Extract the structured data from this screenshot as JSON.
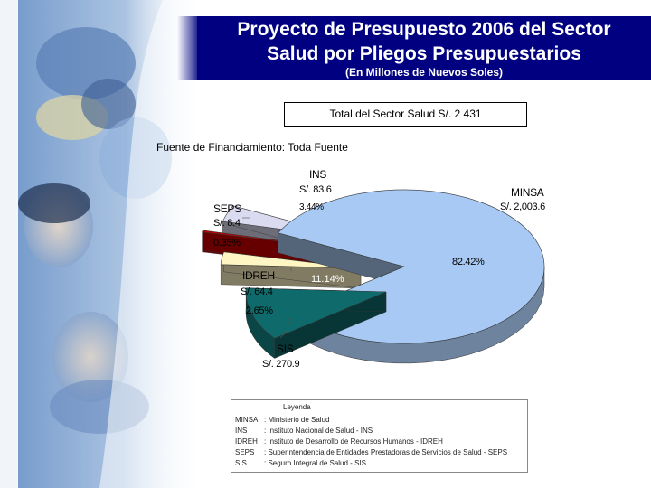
{
  "title": {
    "line1": "Proyecto de Presupuesto 2006 del Sector",
    "line2": "Salud por Pliegos Presupuestarios",
    "subtitle": "(En Millones de Nuevos Soles)"
  },
  "total_label": "Total del Sector Salud S/. 2 431",
  "funding_label": "Fuente de Financiamiento: Toda Fuente",
  "chart_data": {
    "type": "pie",
    "title": "Total del Sector Salud S/. 2 431",
    "slices": [
      {
        "label": "MINSA",
        "value_text": "S/. 2,003.6",
        "value": 2003.6,
        "percent": 82.42,
        "percent_text": "82.42%",
        "color": "#a7c9f3"
      },
      {
        "label": "SIS",
        "value_text": "S/. 270.9",
        "value": 270.9,
        "percent": 11.14,
        "percent_text": "11.14%",
        "color": "#0f6b6b"
      },
      {
        "label": "IDREH",
        "value_text": "S/. 64.4",
        "value": 64.4,
        "percent": 2.65,
        "percent_text": "2.65%",
        "color": "#fff6c4"
      },
      {
        "label": "SEPS",
        "value_text": "S/. 8.4",
        "value": 8.4,
        "percent": 0.35,
        "percent_text": "0.35%",
        "color": "#cc0000"
      },
      {
        "label": "INS",
        "value_text": "S/. 83.6",
        "value": 83.6,
        "percent": 3.44,
        "percent_text": "3.44%",
        "color": "#dadaf0"
      }
    ]
  },
  "legend": {
    "heading": "Leyenda",
    "items": [
      {
        "abbr": "MINSA",
        "desc": ": Ministerio de Salud"
      },
      {
        "abbr": "INS",
        "desc": ": Instituto Nacional de Salud - INS"
      },
      {
        "abbr": "IDREH",
        "desc": ": Instituto de Desarrollo de Recursos Humanos - IDREH"
      },
      {
        "abbr": "SEPS",
        "desc": ": Superintendencia de Entidades Prestadoras de Servicios de Salud - SEPS"
      },
      {
        "abbr": "SIS",
        "desc": ": Seguro Integral de Salud - SIS"
      }
    ]
  }
}
